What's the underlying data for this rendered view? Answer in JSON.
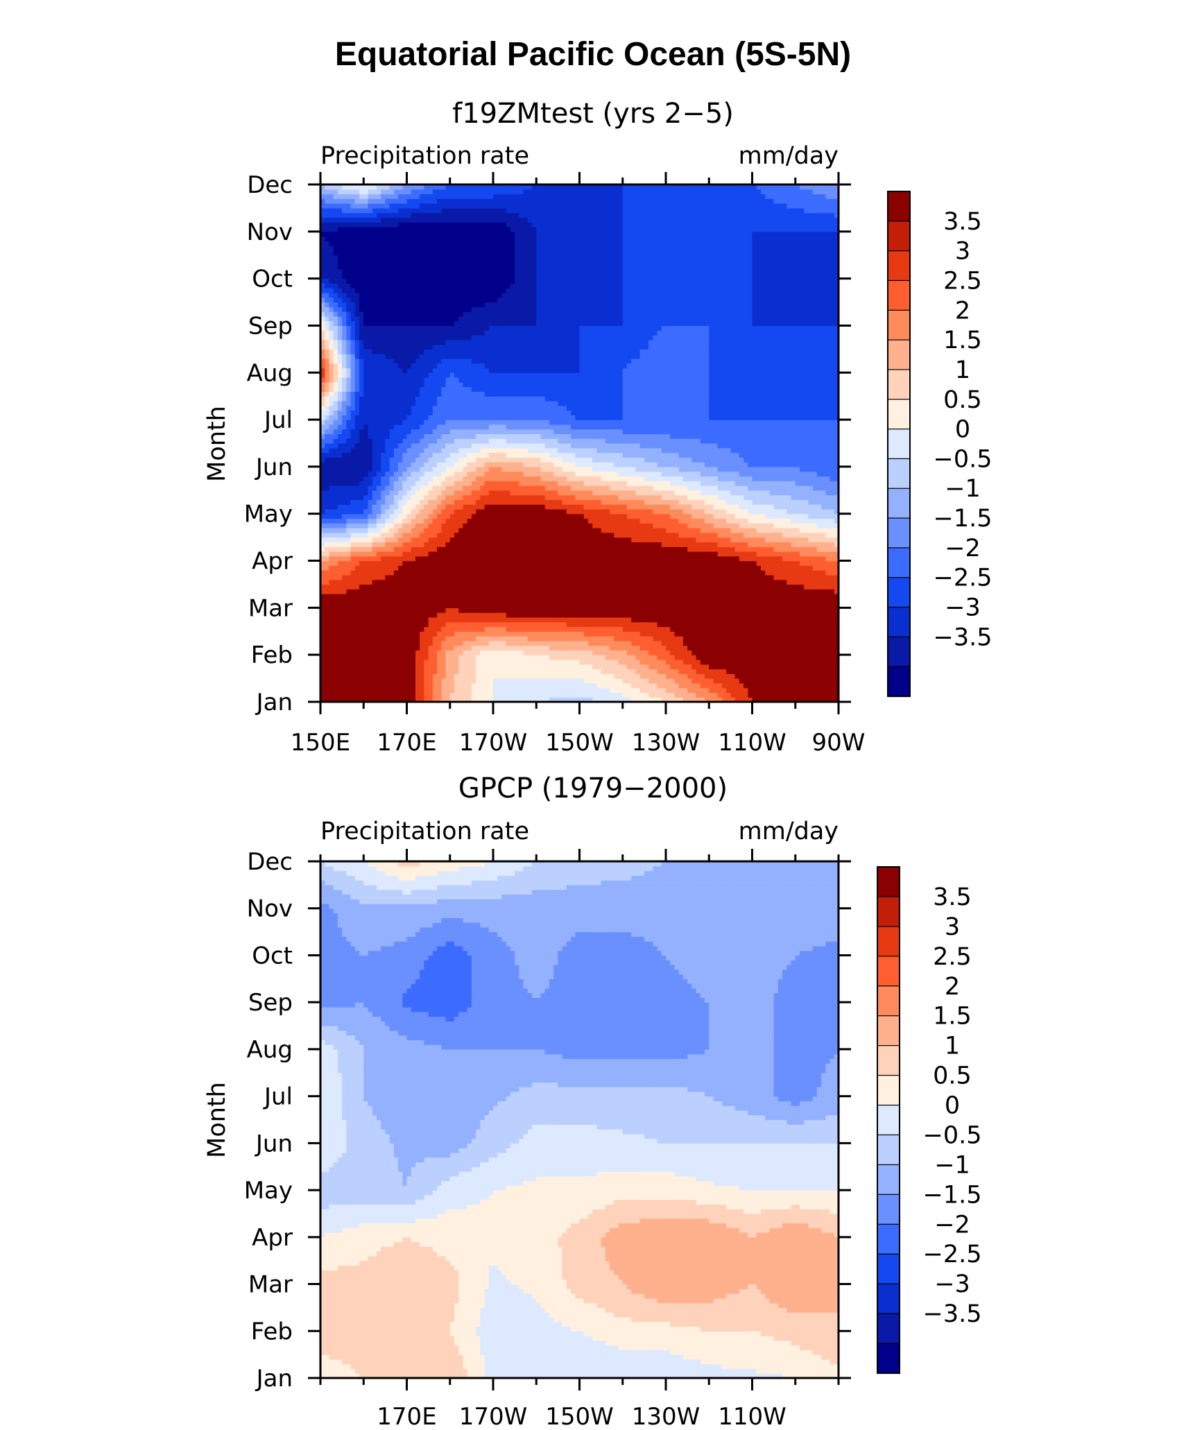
{
  "figure_title": "Equatorial Pacific Ocean (5S-5N)",
  "panels_meta": [
    {
      "title": "f19ZMtest (yrs 2−5)",
      "left_label": "Precipitation rate",
      "right_label": "mm/day",
      "ylabel": "Month"
    },
    {
      "title": "GPCP (1979−2000)",
      "left_label": "Precipitation rate",
      "right_label": "mm/day",
      "ylabel": "Month"
    }
  ],
  "colors": {
    "levels": [
      "#00008b",
      "#0a1aa8",
      "#0a2fd0",
      "#1448f0",
      "#3c6cff",
      "#6a90ff",
      "#93b1ff",
      "#bcd0ff",
      "#dde9ff",
      "#fff0e0",
      "#ffd2bb",
      "#ffb08c",
      "#ff8a5c",
      "#ff5f30",
      "#e83a12",
      "#c21e08",
      "#8b0000"
    ],
    "frame": "#000000"
  },
  "chart_data": [
    {
      "type": "heatmap",
      "panel": "f19ZMtest",
      "xlim": [
        150,
        270
      ],
      "ylim": [
        1,
        12
      ],
      "x_ticks": [
        150,
        170,
        190,
        210,
        230,
        250,
        270
      ],
      "x_tick_labels": [
        "150E",
        "170E",
        "170W",
        "150W",
        "130W",
        "110W",
        "90W"
      ],
      "y_ticks": [
        1,
        2,
        3,
        4,
        5,
        6,
        7,
        8,
        9,
        10,
        11,
        12
      ],
      "y_tick_labels": [
        "Jan",
        "Feb",
        "Mar",
        "Apr",
        "May",
        "Jun",
        "Jul",
        "Aug",
        "Sep",
        "Oct",
        "Nov",
        "Dec"
      ],
      "colorbar_labels": [
        "3.5",
        "3",
        "2.5",
        "2",
        "1.5",
        "1",
        "0.5",
        "0",
        "−0.5",
        "−1",
        "−1.5",
        "−2",
        "−2.5",
        "−3",
        "−3.5"
      ],
      "x": [
        150,
        160,
        170,
        180,
        190,
        200,
        210,
        220,
        230,
        240,
        250,
        260,
        270
      ],
      "y": [
        1,
        2,
        3,
        4,
        5,
        6,
        7,
        8,
        9,
        10,
        11,
        12
      ],
      "z": [
        [
          4.0,
          4.0,
          4.0,
          1.5,
          0.5,
          0.0,
          -0.2,
          0.3,
          1.0,
          2.0,
          3.5,
          4.0,
          4.0
        ],
        [
          4.0,
          4.0,
          4.0,
          1.8,
          0.5,
          1.0,
          1.2,
          1.8,
          2.8,
          4.0,
          4.0,
          4.0,
          4.0
        ],
        [
          4.0,
          4.0,
          4.0,
          3.5,
          4.0,
          4.0,
          4.0,
          4.0,
          4.0,
          4.0,
          4.0,
          4.0,
          4.0
        ],
        [
          2.0,
          3.0,
          3.5,
          4.0,
          4.0,
          4.0,
          4.0,
          4.0,
          4.0,
          4.0,
          3.5,
          3.0,
          2.5
        ],
        [
          -2.5,
          -2.0,
          1.0,
          3.0,
          4.0,
          4.0,
          3.5,
          3.0,
          2.5,
          1.5,
          0.5,
          0.0,
          -0.5
        ],
        [
          -3.5,
          -3.5,
          -1.0,
          0.5,
          2.0,
          1.5,
          0.5,
          0.0,
          -0.5,
          -1.0,
          -1.5,
          -1.5,
          -2.0
        ],
        [
          0.0,
          -3.0,
          -2.5,
          -1.5,
          -1.5,
          -1.5,
          -2.0,
          -2.0,
          -2.0,
          -2.0,
          -2.0,
          -2.0,
          -2.0
        ],
        [
          3.5,
          -2.5,
          -3.0,
          -2.0,
          -2.5,
          -2.5,
          -2.5,
          -2.0,
          -1.5,
          -2.0,
          -2.5,
          -2.5,
          -2.5
        ],
        [
          1.0,
          -3.5,
          -3.5,
          -3.5,
          -3.0,
          -3.0,
          -2.5,
          -2.5,
          -2.0,
          -2.0,
          -2.5,
          -2.5,
          -2.5
        ],
        [
          -3.0,
          -4.0,
          -4.0,
          -4.0,
          -4.0,
          -3.0,
          -3.0,
          -2.5,
          -2.5,
          -2.5,
          -2.5,
          -3.0,
          -2.5
        ],
        [
          -3.5,
          -4.0,
          -4.0,
          -4.0,
          -4.0,
          -3.0,
          -3.0,
          -2.5,
          -2.5,
          -2.5,
          -2.5,
          -2.5,
          -2.5
        ],
        [
          -0.5,
          0.8,
          -1.0,
          -2.0,
          -2.0,
          -2.5,
          -2.5,
          -2.5,
          -2.5,
          -2.5,
          -2.0,
          -1.5,
          -1.0
        ]
      ]
    },
    {
      "type": "heatmap",
      "panel": "GPCP",
      "xlim": [
        150,
        270
      ],
      "ylim": [
        1,
        12
      ],
      "x_ticks": [
        170,
        190,
        210,
        230,
        250
      ],
      "x_tick_labels": [
        "170E",
        "170W",
        "150W",
        "130W",
        "110W"
      ],
      "y_ticks": [
        1,
        2,
        3,
        4,
        5,
        6,
        7,
        8,
        9,
        10,
        11,
        12
      ],
      "y_tick_labels": [
        "Jan",
        "Feb",
        "Mar",
        "Apr",
        "May",
        "Jun",
        "Jul",
        "Aug",
        "Sep",
        "Oct",
        "Nov",
        "Dec"
      ],
      "colorbar_labels": [
        "3.5",
        "3",
        "2.5",
        "2",
        "1.5",
        "1",
        "0.5",
        "0",
        "−0.5",
        "−1",
        "−1.5",
        "−2",
        "−2.5",
        "−3",
        "−3.5"
      ],
      "x": [
        150,
        160,
        170,
        180,
        190,
        200,
        210,
        220,
        230,
        240,
        250,
        260,
        270
      ],
      "y": [
        1,
        2,
        3,
        4,
        5,
        6,
        7,
        8,
        9,
        10,
        11,
        12
      ],
      "z": [
        [
          0.8,
          1.0,
          1.2,
          1.5,
          0.3,
          0.0,
          0.0,
          0.0,
          0.1,
          0.3,
          0.4,
          0.5,
          0.8
        ],
        [
          1.2,
          1.2,
          1.3,
          1.0,
          0.2,
          0.3,
          0.5,
          0.8,
          0.8,
          1.0,
          1.0,
          1.2,
          1.5
        ],
        [
          1.2,
          1.2,
          1.5,
          1.2,
          0.4,
          0.6,
          1.2,
          1.5,
          2.0,
          1.8,
          1.5,
          2.0,
          1.5
        ],
        [
          0.5,
          0.8,
          1.0,
          0.8,
          0.6,
          0.8,
          1.2,
          1.8,
          2.0,
          2.0,
          1.5,
          2.0,
          1.5
        ],
        [
          -0.3,
          -0.3,
          -0.5,
          0.3,
          0.5,
          0.6,
          0.6,
          0.8,
          0.8,
          0.6,
          0.5,
          0.5,
          0.5
        ],
        [
          0.5,
          -0.3,
          -0.6,
          -0.8,
          -0.2,
          0.2,
          0.2,
          0.1,
          0.0,
          0.0,
          0.0,
          0.0,
          0.0
        ],
        [
          0.5,
          -0.5,
          -0.8,
          -0.8,
          -0.6,
          -0.3,
          -0.3,
          -0.3,
          -0.3,
          -0.5,
          -0.8,
          -1.2,
          -0.8
        ],
        [
          0.3,
          -0.5,
          -0.8,
          -1.0,
          -1.0,
          -1.0,
          -1.2,
          -1.2,
          -1.2,
          -1.0,
          -0.8,
          -1.2,
          -1.0
        ],
        [
          -1.2,
          -1.0,
          -1.6,
          -1.8,
          -1.2,
          -1.0,
          -1.2,
          -1.2,
          -1.2,
          -1.0,
          -0.8,
          -1.2,
          -1.2
        ],
        [
          -1.2,
          -1.0,
          -1.2,
          -1.8,
          -1.2,
          -0.8,
          -1.2,
          -1.2,
          -1.0,
          -0.8,
          -0.8,
          -1.0,
          -1.2
        ],
        [
          -1.2,
          -0.6,
          -0.6,
          -0.8,
          -0.8,
          -0.8,
          -0.8,
          -0.8,
          -0.8,
          -0.8,
          -0.6,
          -0.6,
          -0.6
        ],
        [
          0.0,
          0.5,
          1.2,
          0.8,
          0.5,
          0.0,
          -0.2,
          -0.3,
          -0.5,
          -0.5,
          -0.5,
          -0.5,
          -0.5
        ]
      ]
    }
  ]
}
